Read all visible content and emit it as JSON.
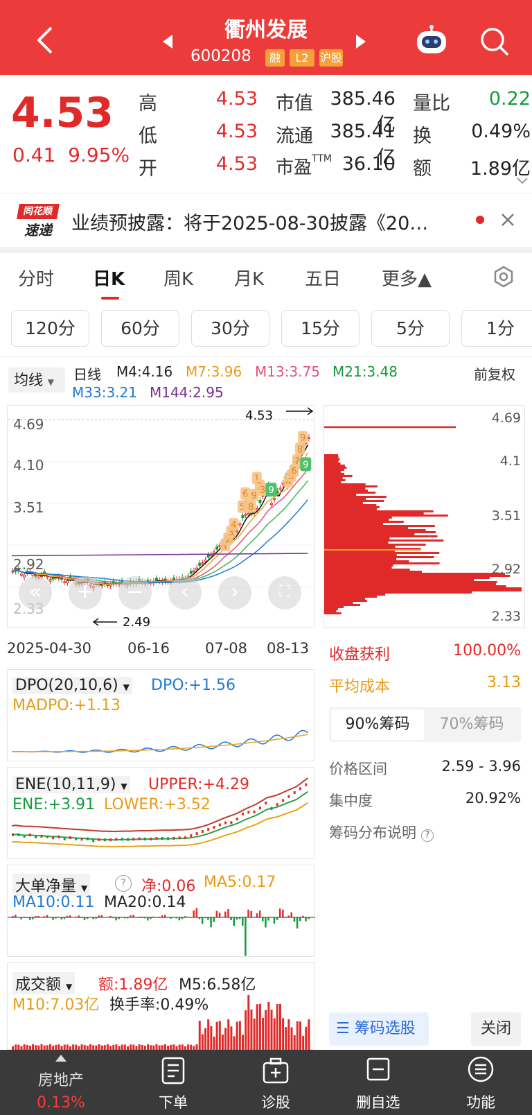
{
  "header": {
    "title": "衢州发展",
    "code": "600208",
    "tags": [
      "融",
      "L2",
      "沪股"
    ]
  },
  "quote": {
    "price": "4.53",
    "change": "0.41",
    "change_pct": "9.95%",
    "rows": [
      {
        "label": "高",
        "value": "4.53",
        "label2": "市值",
        "value2": "385.46亿",
        "label3": "量比",
        "value3": "0.22"
      },
      {
        "label": "低",
        "value": "4.53",
        "label2": "流通",
        "value2": "385.41亿",
        "label3": "换",
        "value3": "0.49%"
      },
      {
        "label": "开",
        "value": "4.53",
        "label2": "市盈TTM",
        "value2": "36.10",
        "label3": "额",
        "value3": "1.89亿"
      }
    ]
  },
  "news": {
    "logo_top": "同花顺",
    "logo_bottom": "速递",
    "text": "业绩预披露：将于2025-08-30披露《20…"
  },
  "tabs": [
    "分时",
    "日K",
    "周K",
    "月K",
    "五日",
    "更多▲"
  ],
  "periods": [
    "120分",
    "60分",
    "30分",
    "15分",
    "5分",
    "1分"
  ],
  "legend": {
    "selector": "均线",
    "daily": "日线",
    "m4": "M4:4.16",
    "m7": "M7:3.96",
    "m13": "M13:3.75",
    "m21": "M21:3.48",
    "m33": "M33:3.21",
    "m144": "M144:2.95",
    "adjust": "前复权"
  },
  "kchart": {
    "yticks": [
      "4.69",
      "4.10",
      "3.51",
      "2.92",
      "2.33"
    ],
    "high_label": "4.53",
    "low_label": "2.49",
    "dates": [
      "2025-04-30",
      "06-16",
      "07-08",
      "08-13"
    ],
    "seq_labels": [
      "1",
      "2",
      "3",
      "4",
      "5",
      "6",
      "7",
      "8",
      "9",
      "1",
      "2",
      "3",
      "4",
      "5",
      "6",
      "7",
      "8",
      "9"
    ]
  },
  "chips": {
    "yticks": [
      "4.69",
      "4.1",
      "3.51",
      "2.92",
      "2.33"
    ],
    "profit_label": "收盘获利",
    "profit_value": "100.00%",
    "cost_label": "平均成本",
    "cost_value": "3.13",
    "tab1": "90%筹码",
    "tab2": "70%筹码",
    "range_label": "价格区间",
    "range_value": "2.59 - 3.96",
    "conc_label": "集中度",
    "conc_value": "20.92%",
    "explain": "筹码分布说明",
    "select_btn": "筹码选股",
    "close_btn": "关闭"
  },
  "dpo": {
    "name": "DPO(20,10,6)",
    "dpo": "DPO:+1.56",
    "madpo": "MADPO:+1.13"
  },
  "ene": {
    "name": "ENE(10,11,9)",
    "upper": "UPPER:+4.29",
    "ene": "ENE:+3.91",
    "lower": "LOWER:+3.52"
  },
  "ddje": {
    "name": "大单净量",
    "net": "净:0.06",
    "ma5": "MA5:0.17",
    "ma10": "MA10:0.11",
    "ma20": "MA20:0.14"
  },
  "cje": {
    "name": "成交额",
    "amt": "额:1.89亿",
    "m5": "M5:6.58亿",
    "m10": "M10:7.03亿",
    "turnover": "换手率:0.49%"
  },
  "bottom": {
    "sector": "房地产",
    "sector_pct": "0.13%",
    "items": [
      "下单",
      "诊股",
      "删自选",
      "功能"
    ]
  }
}
